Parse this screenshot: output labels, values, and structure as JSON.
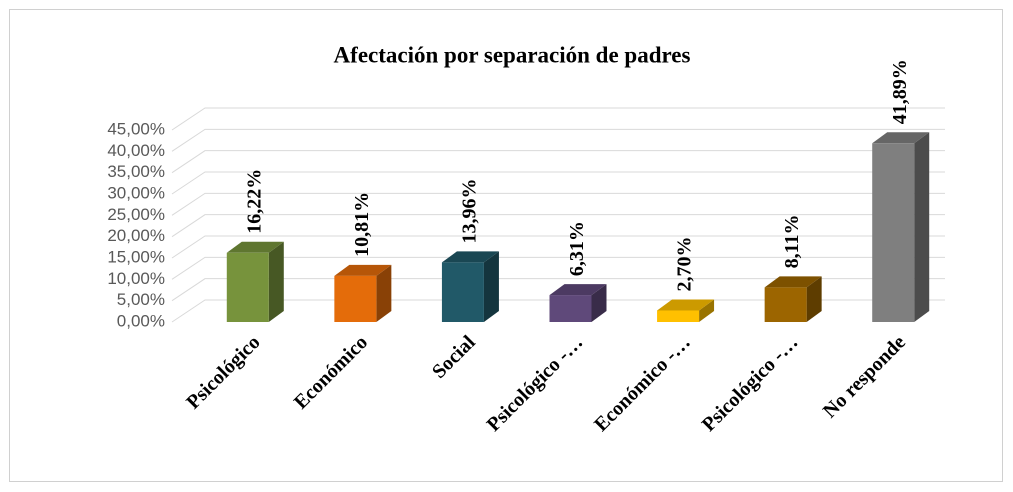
{
  "chart_data": {
    "type": "bar3d",
    "title": "Afectación por separación de padres",
    "categories": [
      "Psicológico",
      "Económico",
      "Social",
      "Psicológico -…",
      "Económico -…",
      "Psicológico -…",
      "No responde"
    ],
    "values": [
      16.22,
      10.81,
      13.96,
      6.31,
      2.7,
      8.11,
      41.89
    ],
    "value_labels": [
      "16,22%",
      "10,81%",
      "13,96%",
      "6,31%",
      "2,70%",
      "8,11%",
      "41,89%"
    ],
    "colors": [
      "#77933c",
      "#e46c0a",
      "#215968",
      "#5f497a",
      "#ffc000",
      "#9c6500",
      "#7f7f7f"
    ],
    "ylim": [
      0,
      45
    ],
    "yticks": [
      {
        "value": 0,
        "label": "0,00%"
      },
      {
        "value": 5,
        "label": "5,00%"
      },
      {
        "value": 10,
        "label": "10,00%"
      },
      {
        "value": 15,
        "label": "15,00%"
      },
      {
        "value": 20,
        "label": "20,00%"
      },
      {
        "value": 25,
        "label": "25,00%"
      },
      {
        "value": 30,
        "label": "30,00%"
      },
      {
        "value": 35,
        "label": "35,00%"
      },
      {
        "value": 40,
        "label": "40,00%"
      },
      {
        "value": 45,
        "label": "45,00%"
      }
    ],
    "grid": true
  }
}
